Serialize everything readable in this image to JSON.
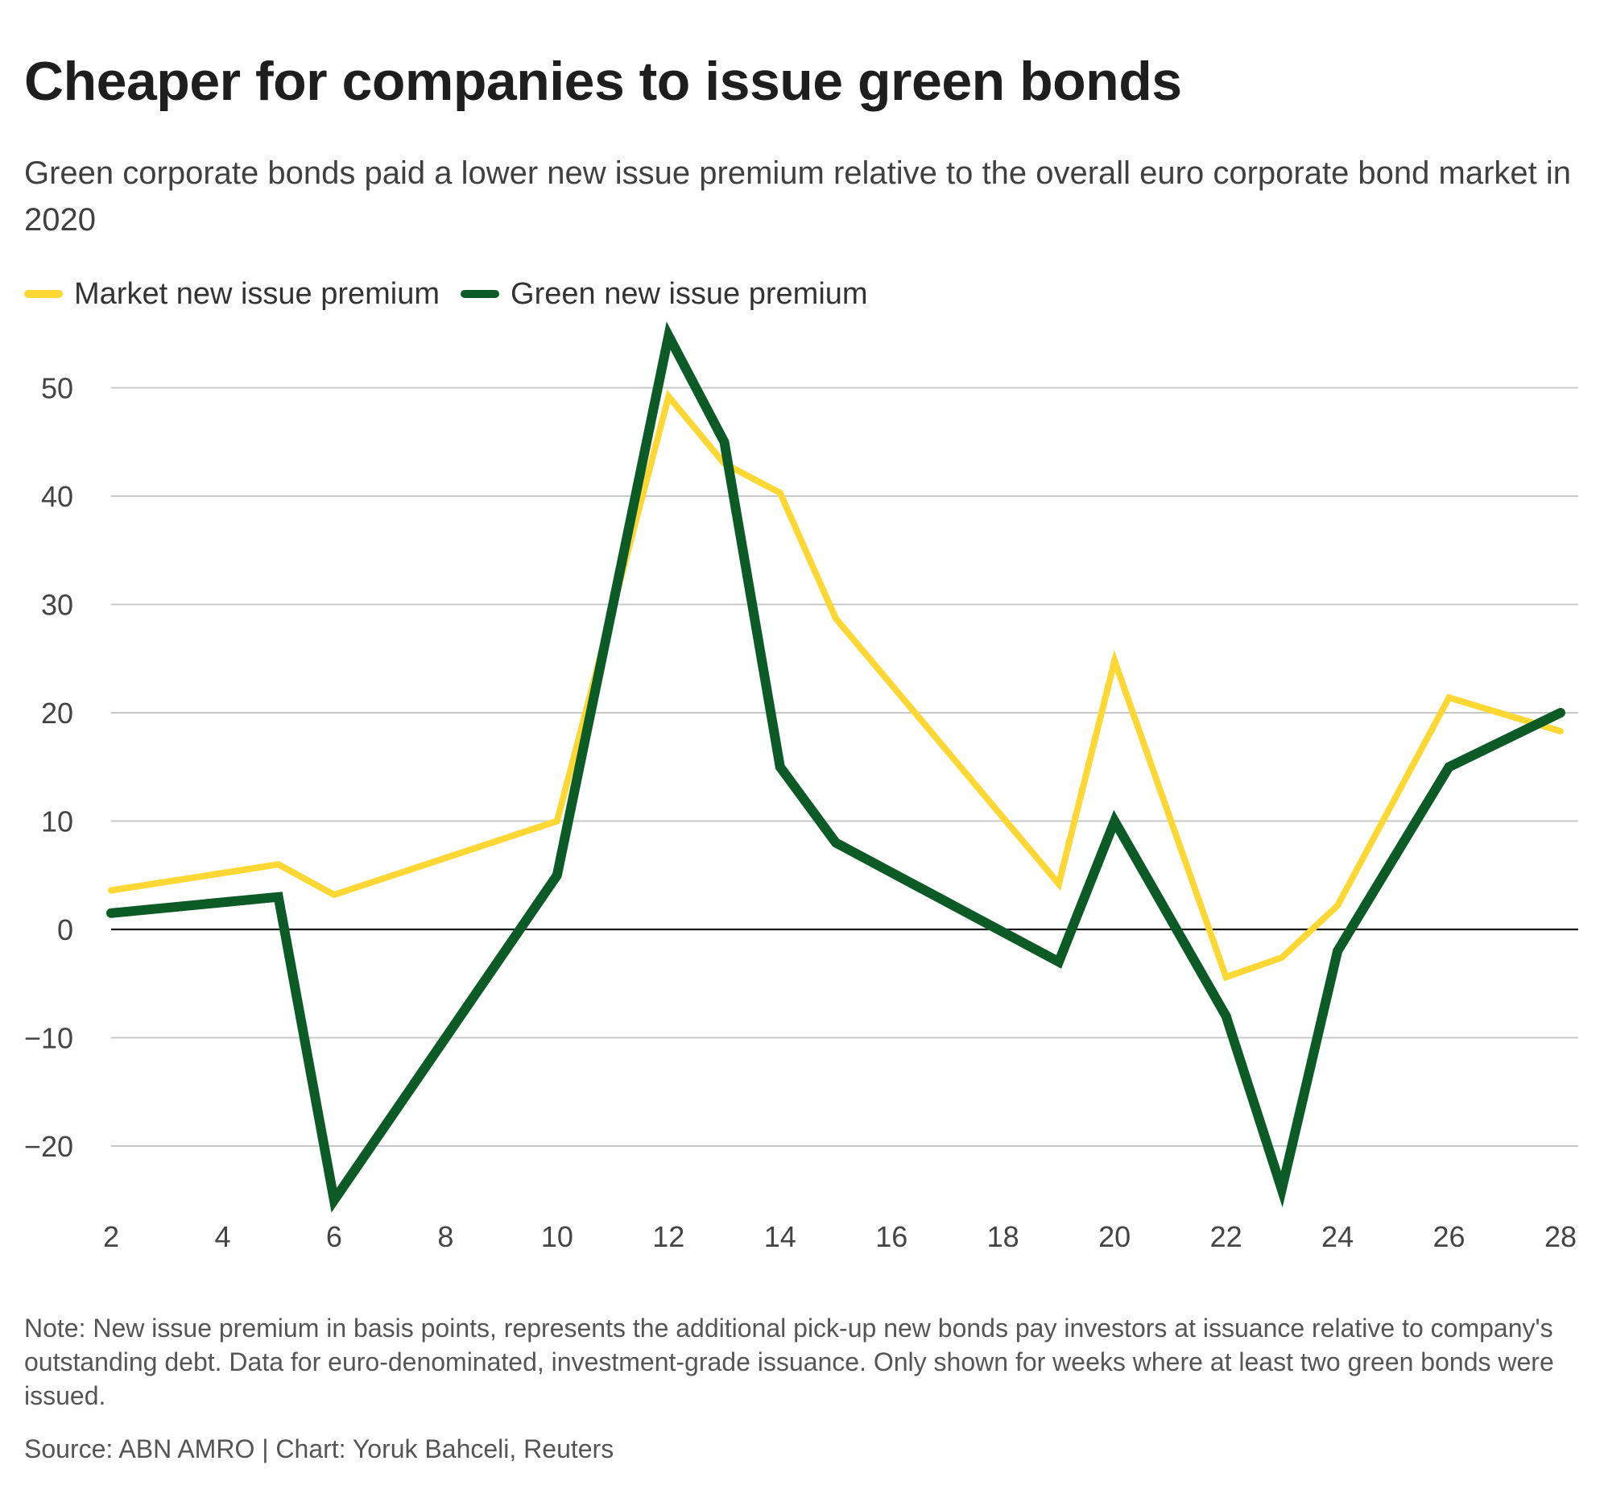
{
  "header": {
    "title": "Cheaper for companies to issue green bonds",
    "subtitle": "Green corporate bonds paid a lower new issue premium relative to the overall euro corporate bond market in 2020"
  },
  "footer": {
    "note": "Note: New issue premium in basis points, represents the additional pick-up new bonds pay investors at issuance relative to company's outstanding debt. Data for euro-denominated, investment-grade issuance. Only shown for weeks where at least two green bonds were issued.",
    "source": "Source: ABN AMRO | Chart: Yoruk Bahceli, Reuters"
  },
  "chart_data": {
    "type": "line",
    "title": "Cheaper for companies to issue green bonds",
    "subtitle": "Green corporate bonds paid a lower new issue premium relative to the overall euro corporate bond market in 2020",
    "xlabel": "",
    "ylabel": "",
    "xlim": [
      2,
      28
    ],
    "ylim": [
      -25,
      55
    ],
    "x_ticks": [
      2,
      4,
      6,
      8,
      10,
      12,
      14,
      16,
      18,
      20,
      22,
      24,
      26,
      28
    ],
    "y_ticks": [
      -20,
      -10,
      0,
      10,
      20,
      30,
      40,
      50
    ],
    "y_tick_labels": [
      "−20",
      "−10",
      "0",
      "10",
      "20",
      "30",
      "40",
      "50"
    ],
    "grid": "horizontal",
    "legend_position": "top-left",
    "x": [
      2,
      5,
      6,
      10,
      12,
      13,
      14,
      15,
      19,
      20,
      22,
      23,
      24,
      26,
      28
    ],
    "series": [
      {
        "name": "Market new issue premium",
        "color": "#fdd835",
        "values": [
          3.6,
          6.0,
          3.2,
          10.0,
          49.2,
          43.0,
          40.3,
          28.7,
          4.2,
          24.8,
          -4.4,
          -2.6,
          2.2,
          21.4,
          18.3
        ]
      },
      {
        "name": "Green new issue premium",
        "color": "#0c5a25",
        "values": [
          1.5,
          3.0,
          -25.0,
          5.0,
          54.8,
          45.0,
          15.0,
          8.0,
          -3.0,
          10.0,
          -8.0,
          -24.0,
          -2.0,
          15.0,
          20.0
        ]
      }
    ]
  }
}
